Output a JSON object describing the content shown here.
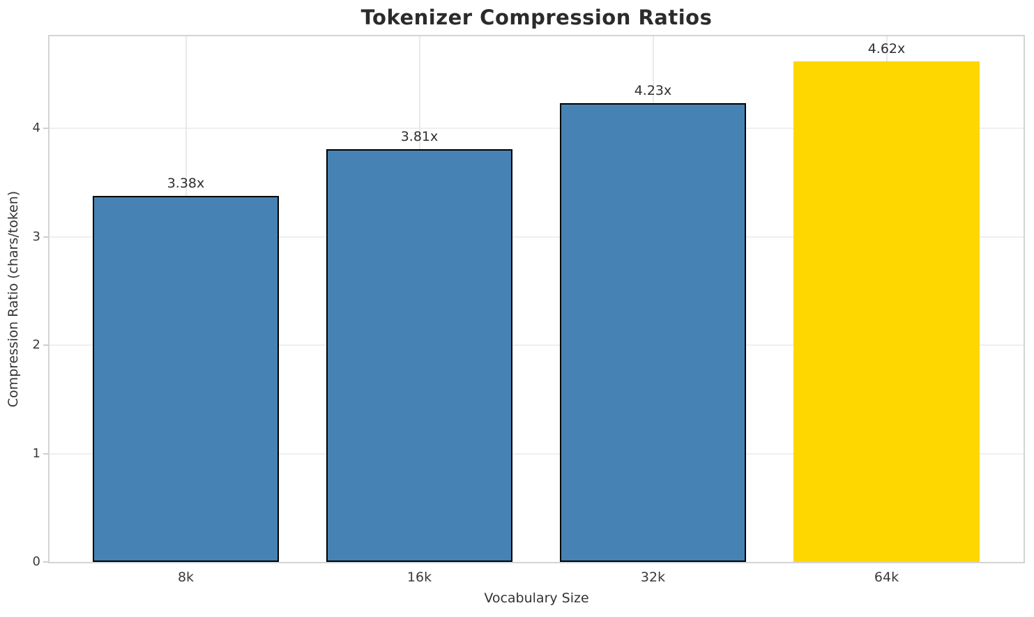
{
  "page": {
    "background": "#ffffff"
  },
  "chart_data": {
    "type": "bar",
    "title": "Tokenizer Compression Ratios",
    "xlabel": "Vocabulary Size",
    "ylabel": "Compression Ratio (chars/token)",
    "categories": [
      "8k",
      "16k",
      "32k",
      "64k"
    ],
    "values": [
      3.38,
      3.81,
      4.23,
      4.62
    ],
    "bar_labels": [
      "3.38x",
      "3.81x",
      "4.23x",
      "4.62x"
    ],
    "ylim": [
      0,
      4.85
    ],
    "yticks": [
      "0",
      "1",
      "2",
      "3",
      "4"
    ],
    "grid": true,
    "legend_position": "none",
    "bar_colors": [
      "#4682B4",
      "#4682B4",
      "#4682B4",
      "#FFD700"
    ],
    "bar_edge_colors": [
      "#000000",
      "#000000",
      "#000000",
      "none"
    ],
    "highlight_index": 3
  },
  "colors": {
    "bar_blue": "#4682B4",
    "bar_gold": "#FFD700",
    "bar_edge": "#000000",
    "gridline": "#efefef",
    "spine": "#d4d4d4",
    "tick_text": "#3a3a3a",
    "title_text": "#2b2b2b"
  }
}
